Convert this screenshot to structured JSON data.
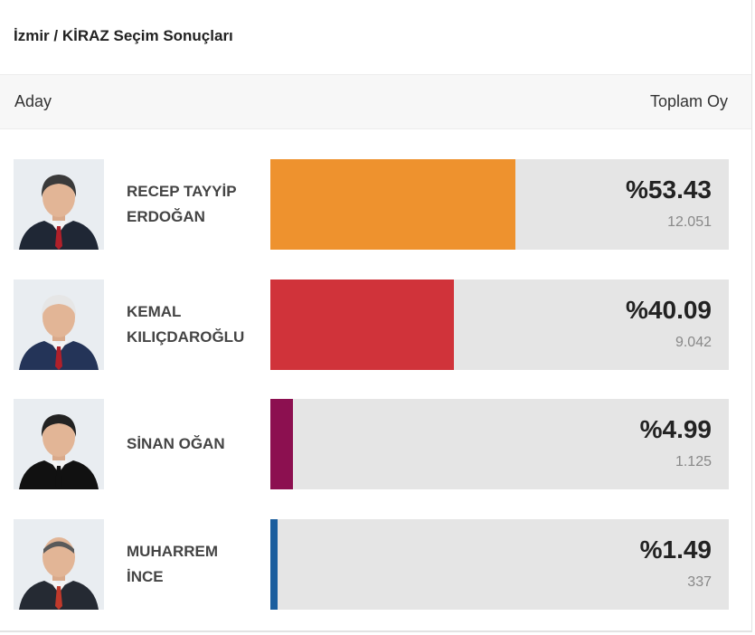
{
  "header": {
    "title": "İzmir / KİRAZ Seçim Sonuçları"
  },
  "table": {
    "col_candidate": "Aday",
    "col_total": "Toplam Oy"
  },
  "candidates": [
    {
      "name_line1": "RECEP TAYYİP",
      "name_line2": "ERDOĞAN",
      "percent": "%53.43",
      "votes": "12.051",
      "share": 0.5343,
      "color": "#ee922e",
      "suit": "#1f2735",
      "tie": "#b0202a",
      "hair": "#3a3a3a",
      "bald": false
    },
    {
      "name_line1": "KEMAL",
      "name_line2": "KILIÇDAROĞLU",
      "percent": "%40.09",
      "votes": "9.042",
      "share": 0.4009,
      "color": "#d0333a",
      "suit": "#243458",
      "tie": "#b0202a",
      "hair": "#e6e6e6",
      "bald": false
    },
    {
      "name_line1": "SİNAN OĞAN",
      "name_line2": "",
      "percent": "%4.99",
      "votes": "1.125",
      "share": 0.0499,
      "color": "#8c1050",
      "suit": "#111111",
      "tie": "#111111",
      "hair": "#222222",
      "bald": false
    },
    {
      "name_line1": "MUHARREM",
      "name_line2": "İNCE",
      "percent": "%1.49",
      "votes": "337",
      "share": 0.0149,
      "color": "#1b5e9e",
      "suit": "#252a33",
      "tie": "#c0392b",
      "hair": "#5a5a5a",
      "bald": true
    }
  ]
}
